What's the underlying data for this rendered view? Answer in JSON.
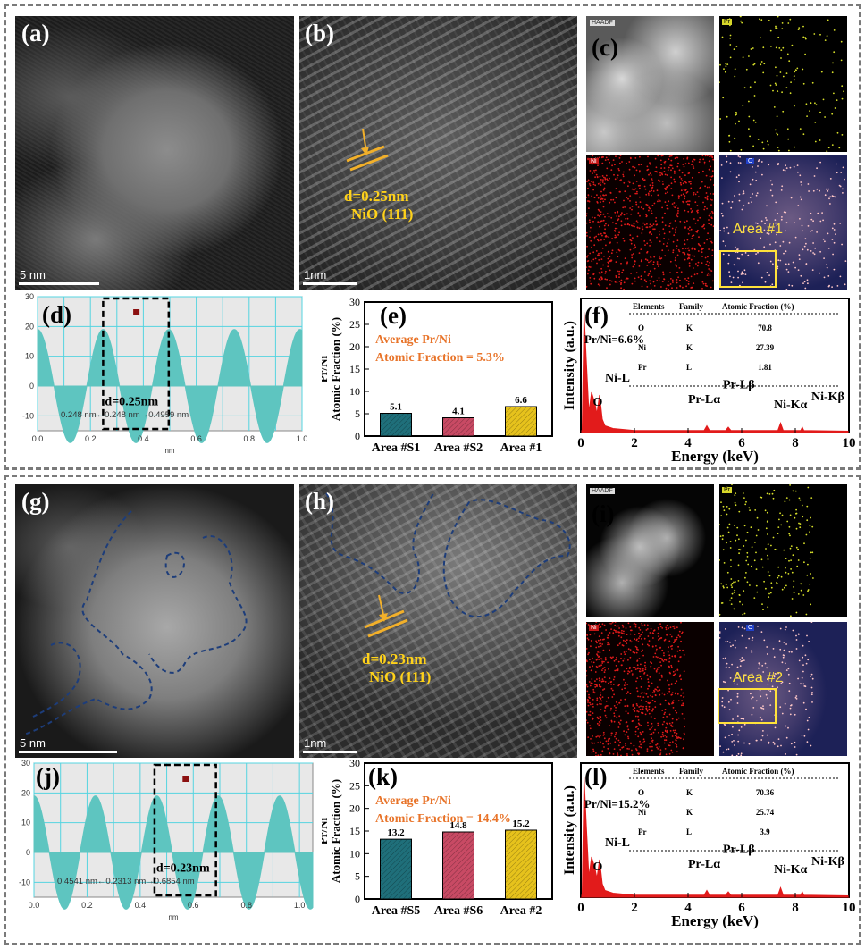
{
  "panel_labels": {
    "a": "(a)",
    "b": "(b)",
    "c": "(c)",
    "d": "(d)",
    "e": "(e)",
    "f": "(f)",
    "g": "(g)",
    "h": "(h)",
    "i": "(i)",
    "j": "(j)",
    "k": "(k)",
    "l": "(l)"
  },
  "scalebars": {
    "a": "5 nm",
    "b": "1nm",
    "g": "5 nm",
    "h": "1nm"
  },
  "hrtem_top": {
    "spacing": "d=0.25nm",
    "plane": "NiO (111)"
  },
  "hrtem_bottom": {
    "spacing": "d=0.23nm",
    "plane": "NiO (111)"
  },
  "eds_map_top": {
    "area": "Area #1",
    "tags": [
      "HAADF",
      "O",
      "Ni",
      "Pr"
    ]
  },
  "eds_map_bottom": {
    "area": "Area #2",
    "tags": [
      "HAADF",
      "O",
      "Ni",
      "Pr"
    ]
  },
  "colors": {
    "profile_fill": "#5ec5c0",
    "grid": "#55d4e0",
    "bar1": "#1f6f7a",
    "bar2": "#c84a64",
    "bar3": "#e6c21c",
    "accent_text": "#e8742a",
    "eds_red": "#e21b1b",
    "annotation_yellow": "#ffd21a"
  },
  "chart_data": [
    {
      "id": "d",
      "type": "area",
      "xlabel": "nm",
      "ylabel": "",
      "xlim": [
        0,
        1.0
      ],
      "ylim": [
        -15,
        30
      ],
      "xticks": [
        "0.0",
        "0.2",
        "0.4",
        "0.6",
        "0.8",
        "1.0"
      ],
      "yticks": [
        "-10",
        "0",
        "10",
        "20",
        "30"
      ],
      "period_nm": 0.248,
      "amplitude": 19,
      "spacing_label": "d=0.25nm",
      "measurement": "0.248 nm←0.248 nm→0.4959 nm",
      "window": [
        0.248,
        0.496
      ]
    },
    {
      "id": "e",
      "type": "bar",
      "ylabel": "Pr/Ni\nAtomic Fraction (%)",
      "ylim": [
        0,
        30
      ],
      "yticks": [
        "0",
        "5",
        "10",
        "15",
        "20",
        "25",
        "30"
      ],
      "categories": [
        "Area #S1",
        "Area #S2",
        "Area #1"
      ],
      "values": [
        5.1,
        4.1,
        6.6
      ],
      "value_labels": [
        "5.1",
        "4.1",
        "6.6"
      ],
      "annotation": [
        "Average Pr/Ni",
        "Atomic Fraction = 5.3%"
      ]
    },
    {
      "id": "f",
      "type": "line",
      "xlabel": "Energy (keV)",
      "ylabel": "Intensity (a.u.)",
      "xlim": [
        0,
        10
      ],
      "xticks": [
        "0",
        "2",
        "4",
        "6",
        "8",
        "10"
      ],
      "ratio": "Pr/Ni=6.6%",
      "peaks": [
        "O",
        "Ni-L",
        "Pr-Lα",
        "Pr-Lβ",
        "Ni-Kα",
        "Ni-Kβ"
      ],
      "table": {
        "headers": [
          "Elements",
          "Family",
          "Atomic Fraction (%)"
        ],
        "rows": [
          [
            "O",
            "K",
            "70.8"
          ],
          [
            "Ni",
            "K",
            "27.39"
          ],
          [
            "Pr",
            "L",
            "1.81"
          ]
        ]
      }
    },
    {
      "id": "j",
      "type": "area",
      "xlabel": "nm",
      "ylabel": "",
      "xlim": [
        0,
        1.05
      ],
      "ylim": [
        -15,
        30
      ],
      "xticks": [
        "0.0",
        "0.2",
        "0.4",
        "0.6",
        "0.8",
        "1.0"
      ],
      "yticks": [
        "-10",
        "0",
        "10",
        "20",
        "30"
      ],
      "period_nm": 0.2313,
      "amplitude": 19,
      "spacing_label": "d=0.23nm",
      "measurement": "0.4541 nm←0.2313 nm→0.6854 nm",
      "window": [
        0.4541,
        0.6854
      ]
    },
    {
      "id": "k",
      "type": "bar",
      "ylabel": "Pr/Ni\nAtomic Fraction (%)",
      "ylim": [
        0,
        30
      ],
      "yticks": [
        "0",
        "5",
        "10",
        "15",
        "20",
        "25",
        "30"
      ],
      "categories": [
        "Area #S5",
        "Area #S6",
        "Area #2"
      ],
      "values": [
        13.2,
        14.8,
        15.2
      ],
      "value_labels": [
        "13.2",
        "14.8",
        "15.2"
      ],
      "annotation": [
        "Average Pr/Ni",
        "Atomic Fraction = 14.4%"
      ]
    },
    {
      "id": "l",
      "type": "line",
      "xlabel": "Energy (keV)",
      "ylabel": "Intensity (a.u.)",
      "xlim": [
        0,
        10
      ],
      "xticks": [
        "0",
        "2",
        "4",
        "6",
        "8",
        "10"
      ],
      "ratio": "Pr/Ni=15.2%",
      "peaks": [
        "O",
        "Ni-L",
        "Pr-Lα",
        "Pr-Lβ",
        "Ni-Kα",
        "Ni-Kβ"
      ],
      "table": {
        "headers": [
          "Elements",
          "Family",
          "Atomic Fraction (%)"
        ],
        "rows": [
          [
            "O",
            "K",
            "70.36"
          ],
          [
            "Ni",
            "K",
            "25.74"
          ],
          [
            "Pr",
            "L",
            "3.9"
          ]
        ]
      }
    }
  ]
}
